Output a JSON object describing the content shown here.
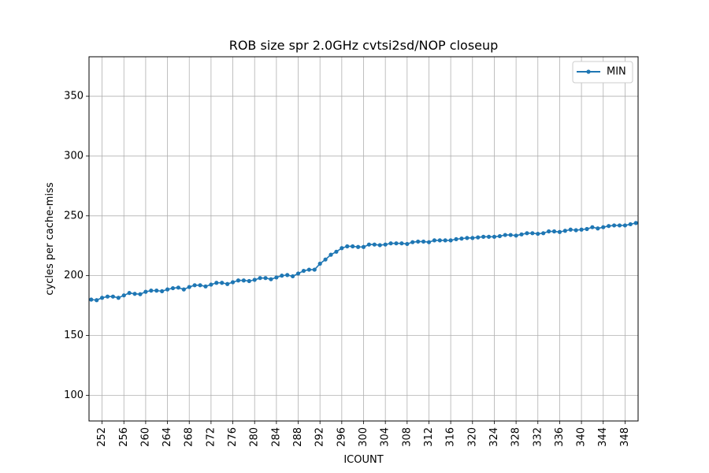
{
  "chart_data": {
    "type": "line",
    "title": "ROB size spr 2.0GHz cvtsi2sd/NOP closeup",
    "xlabel": "ICOUNT",
    "ylabel": "cycles per cache-miss",
    "xlim": [
      249.6,
      350.4
    ],
    "ylim": [
      78.5,
      383
    ],
    "xticks": [
      252,
      256,
      260,
      264,
      268,
      272,
      276,
      280,
      284,
      288,
      292,
      296,
      300,
      304,
      308,
      312,
      316,
      320,
      324,
      328,
      332,
      336,
      340,
      344,
      348
    ],
    "yticks": [
      100,
      150,
      200,
      250,
      300,
      350
    ],
    "grid": true,
    "legend_position": "upper-right",
    "series": [
      {
        "name": "MIN",
        "color": "#1f77b4",
        "marker": "circle",
        "x": [
          250,
          251,
          252,
          253,
          254,
          255,
          256,
          257,
          258,
          259,
          260,
          261,
          262,
          263,
          264,
          265,
          266,
          267,
          268,
          269,
          270,
          271,
          272,
          273,
          274,
          275,
          276,
          277,
          278,
          279,
          280,
          281,
          282,
          283,
          284,
          285,
          286,
          287,
          288,
          289,
          290,
          291,
          292,
          293,
          294,
          295,
          296,
          297,
          298,
          299,
          300,
          301,
          302,
          303,
          304,
          305,
          306,
          307,
          308,
          309,
          310,
          311,
          312,
          313,
          314,
          315,
          316,
          317,
          318,
          319,
          320,
          321,
          322,
          323,
          324,
          325,
          326,
          327,
          328,
          329,
          330,
          331,
          332,
          333,
          334,
          335,
          336,
          337,
          338,
          339,
          340,
          341,
          342,
          343,
          344,
          345,
          346,
          347,
          348,
          349,
          350
        ],
        "y": [
          180.0,
          179.5,
          181.5,
          182.5,
          182.5,
          181.5,
          183.5,
          185.5,
          184.8,
          184.5,
          186.5,
          187.5,
          187.5,
          187.0,
          188.5,
          189.5,
          190.0,
          188.5,
          190.5,
          192.0,
          192.0,
          191.0,
          192.5,
          194.0,
          194.0,
          193.0,
          194.5,
          196.0,
          196.0,
          195.5,
          196.5,
          198.0,
          198.0,
          197.0,
          198.5,
          200.0,
          200.5,
          199.5,
          201.8,
          204.0,
          205.0,
          205.0,
          210.0,
          213.5,
          217.5,
          220.0,
          223.0,
          224.5,
          224.5,
          224.0,
          224.0,
          226.0,
          226.0,
          225.5,
          226.0,
          227.0,
          227.0,
          227.0,
          226.5,
          228.0,
          228.5,
          228.5,
          228.0,
          229.5,
          229.5,
          229.5,
          229.5,
          230.5,
          231.0,
          231.5,
          231.5,
          232.0,
          232.5,
          232.5,
          232.5,
          233.0,
          234.0,
          234.0,
          233.5,
          234.5,
          235.5,
          235.5,
          235.0,
          235.5,
          237.0,
          237.0,
          236.5,
          237.5,
          238.5,
          238.0,
          238.5,
          239.0,
          240.5,
          239.5,
          240.5,
          241.5,
          242.0,
          242.0,
          242.0,
          243.0,
          244.0
        ]
      }
    ]
  }
}
